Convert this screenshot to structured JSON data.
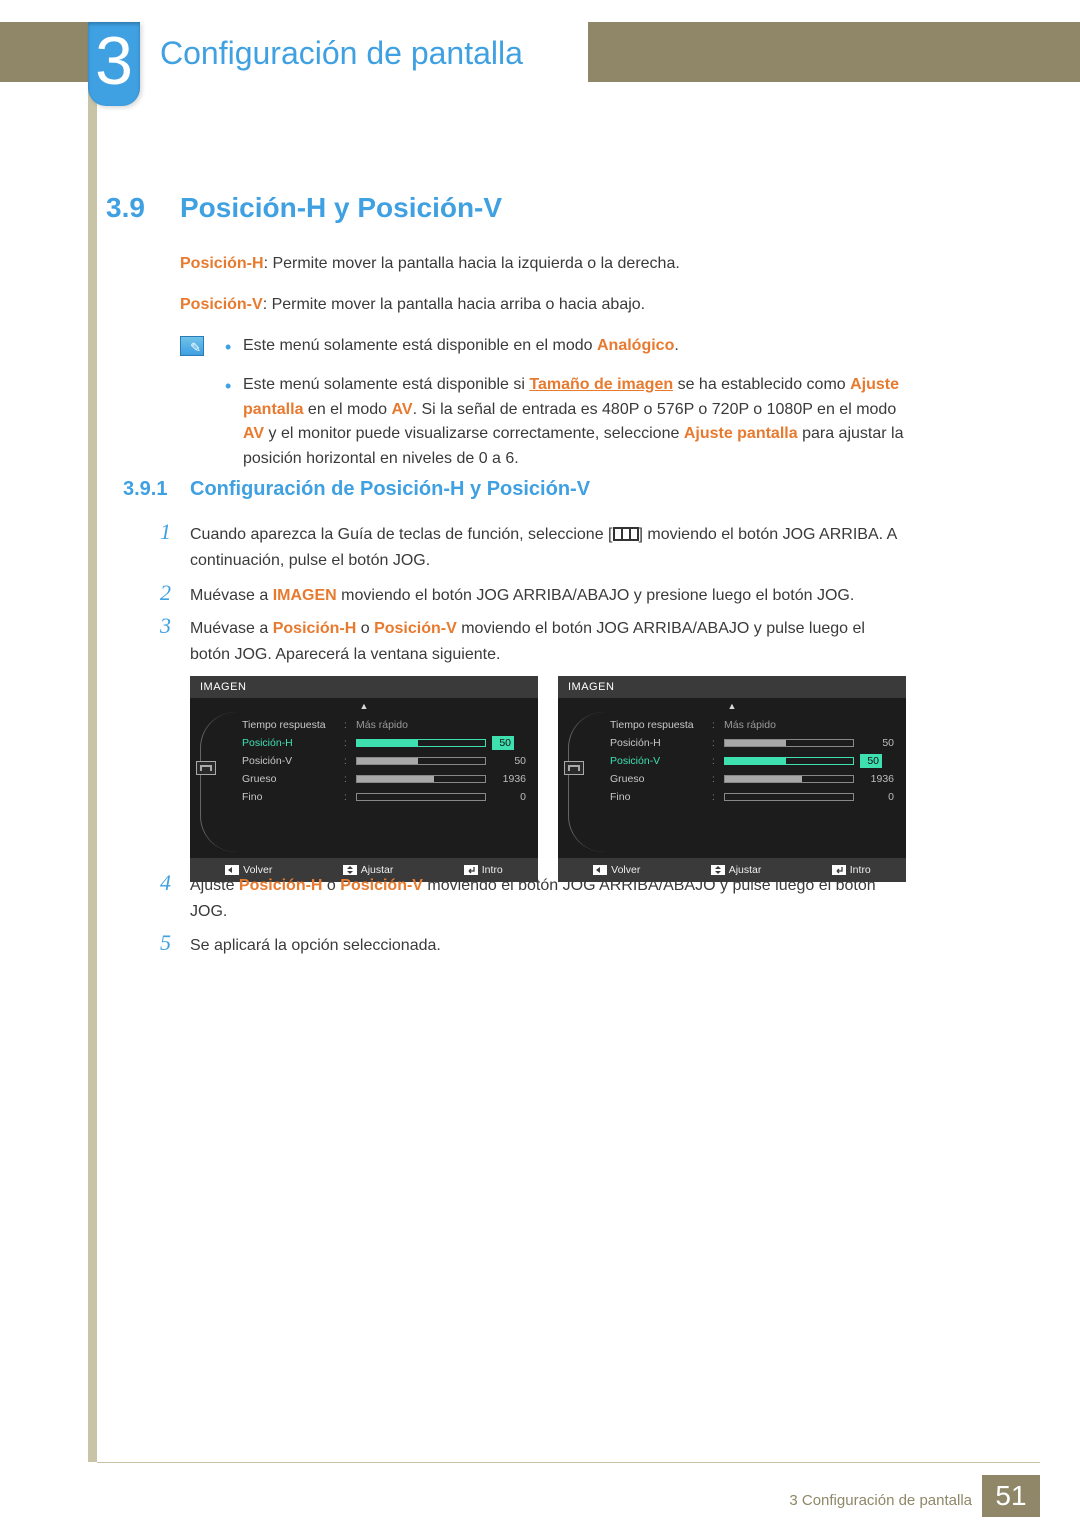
{
  "chapter": {
    "number": "3",
    "title": "Configuración de pantalla"
  },
  "section": {
    "number": "3.9",
    "title": "Posición-H y Posición-V"
  },
  "intro": {
    "ph_label": "Posición-H",
    "ph_text": ": Permite mover la pantalla hacia la izquierda o la derecha.",
    "pv_label": "Posición-V",
    "pv_text": ": Permite mover la pantalla hacia arriba o hacia abajo."
  },
  "notes": {
    "n1_a": "Este menú solamente está disponible en el modo ",
    "n1_b": "Analógico",
    "n1_c": ".",
    "n2_a": "Este menú solamente está disponible si ",
    "n2_b": "Tamaño de imagen",
    "n2_c": " se ha establecido como ",
    "n2_d": "Ajuste pantalla",
    "n2_e": " en el modo ",
    "n2_f": "AV",
    "n2_g": ". Si la señal de entrada es 480P o 576P o 720P o 1080P en el modo ",
    "n2_h": "AV",
    "n2_i": " y el monitor puede visualizarse correctamente, seleccione ",
    "n2_j": "Ajuste pantalla",
    "n2_k": " para ajustar la posición horizontal en niveles de 0 a 6."
  },
  "subsection": {
    "number": "3.9.1",
    "title": "Configuración de Posición-H y Posición-V"
  },
  "steps": {
    "s1_a": "Cuando aparezca la Guía de teclas de función, seleccione [",
    "s1_b": "] moviendo el botón JOG ARRIBA. A continuación, pulse el botón JOG.",
    "s2_a": "Muévase a ",
    "s2_b": "IMAGEN",
    "s2_c": " moviendo el botón JOG ARRIBA/ABAJO y presione luego el botón JOG.",
    "s3_a": "Muévase a ",
    "s3_b": "Posición-H",
    "s3_c": " o ",
    "s3_d": "Posición-V",
    "s3_e": " moviendo el botón JOG ARRIBA/ABAJO y pulse luego el botón JOG. Aparecerá la ventana siguiente.",
    "s4_a": "Ajuste ",
    "s4_b": "Posición-H",
    "s4_c": " o ",
    "s4_d": "Posición-V",
    "s4_e": " moviendo el botón JOG ARRIBA/ABAJO y pulse luego el botón JOG.",
    "s5": "Se aplicará la opción seleccionada."
  },
  "osd": {
    "title": "IMAGEN",
    "rows": {
      "r1": {
        "label": "Tiempo respuesta",
        "text": "Más rápido"
      },
      "r2": {
        "label": "Posición-H",
        "value": "50",
        "fill_pct": 48
      },
      "r3": {
        "label": "Posición-V",
        "value": "50",
        "fill_pct": 48
      },
      "r4": {
        "label": "Grueso",
        "value": "1936",
        "fill_pct": 60
      },
      "r5": {
        "label": "Fino",
        "value": "0",
        "fill_pct": 0
      }
    },
    "left_selected": "r2",
    "right_selected": "r3",
    "footer": {
      "back": "Volver",
      "adjust": "Ajustar",
      "enter": "Intro"
    },
    "colors": {
      "panel_bg": "#1c1c1c",
      "header_bg": "#3a3a3a",
      "text": "#c7c7c7",
      "accent": "#3fe0b0",
      "slider_border": "#888888",
      "slider_fill": "#a8a8a8"
    }
  },
  "footer": {
    "text": "3 Configuración de pantalla",
    "page": "51"
  },
  "palette": {
    "blue": "#3fa0e2",
    "orange": "#e87a2f",
    "khaki": "#8f8767",
    "khaki_light": "#c9c3a8",
    "body_text": "#3a3a3a"
  }
}
